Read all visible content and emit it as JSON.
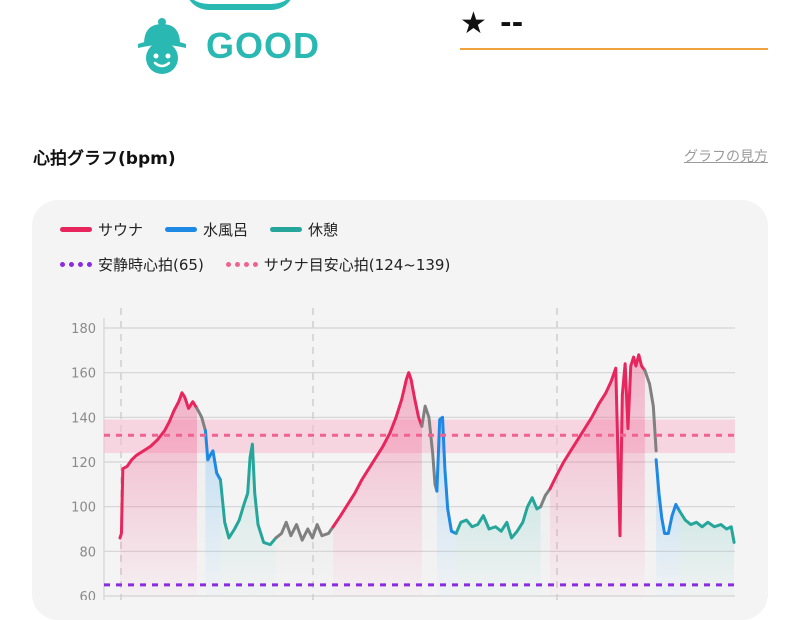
{
  "status": {
    "label": "GOOD",
    "icon": "smiling-hat-face-icon",
    "color": "#2ab9b2"
  },
  "rating": {
    "star": "★",
    "value": "--",
    "underline_color": "#f0a23c"
  },
  "graph_section": {
    "title": "心拍グラフ(bpm)",
    "help_link": "グラフの見方"
  },
  "legend": {
    "sauna": "サウナ",
    "water_bath": "水風呂",
    "rest": "休憩",
    "resting_hr": "安静時心拍(65)",
    "sauna_target": "サウナ目安心拍(124~139)"
  },
  "colors": {
    "sauna": "#e8265e",
    "water_bath": "#1e88e5",
    "rest": "#26a69a",
    "transition": "#808080",
    "resting_hr": "#8a2be2",
    "target": "#f06292"
  },
  "chart_data": {
    "type": "line",
    "title": "",
    "xlabel": "",
    "ylabel": "",
    "ylim": [
      60,
      180
    ],
    "yticks": [
      60,
      80,
      100,
      120,
      140,
      160,
      180
    ],
    "target_band": [
      124,
      139
    ],
    "target_line": 132,
    "resting_line": 65,
    "x_range": [
      0,
      100
    ],
    "segments": [
      {
        "type": "sauna",
        "points": [
          [
            0,
            86
          ],
          [
            0.3,
            88
          ],
          [
            0.6,
            117
          ],
          [
            1.5,
            118
          ],
          [
            2.5,
            121
          ],
          [
            3.5,
            123
          ],
          [
            5,
            125
          ],
          [
            6.5,
            127
          ],
          [
            8,
            130
          ],
          [
            9.5,
            134
          ],
          [
            10.5,
            138
          ],
          [
            11.5,
            143
          ],
          [
            12.5,
            147
          ],
          [
            13.2,
            151
          ],
          [
            13.8,
            149
          ],
          [
            14.6,
            144
          ],
          [
            15.5,
            147
          ],
          [
            16.4,
            144
          ]
        ]
      },
      {
        "type": "transition",
        "points": [
          [
            16.4,
            144
          ],
          [
            17.4,
            140
          ],
          [
            18.2,
            134
          ]
        ]
      },
      {
        "type": "water",
        "points": [
          [
            18.2,
            134
          ],
          [
            18.7,
            121
          ],
          [
            19.2,
            123
          ],
          [
            19.8,
            125
          ],
          [
            20.6,
            115
          ],
          [
            21.4,
            112
          ]
        ]
      },
      {
        "type": "rest",
        "points": [
          [
            21.4,
            112
          ],
          [
            22.3,
            93
          ],
          [
            23.2,
            86
          ],
          [
            24.4,
            90
          ],
          [
            25.4,
            94
          ],
          [
            26.4,
            101
          ],
          [
            27.2,
            106
          ],
          [
            27.7,
            122
          ],
          [
            28.2,
            128
          ],
          [
            28.7,
            106
          ],
          [
            29.4,
            92
          ],
          [
            30.6,
            84
          ],
          [
            32,
            83
          ],
          [
            33.2,
            86
          ]
        ]
      },
      {
        "type": "transition",
        "points": [
          [
            33.2,
            86
          ],
          [
            34.4,
            88
          ],
          [
            35.4,
            93
          ],
          [
            36.4,
            87
          ],
          [
            37.6,
            92
          ],
          [
            38.8,
            85
          ],
          [
            40,
            90
          ],
          [
            41,
            86
          ],
          [
            42,
            92
          ],
          [
            43,
            87
          ],
          [
            44.4,
            88
          ],
          [
            45.4,
            91
          ]
        ]
      },
      {
        "type": "sauna",
        "points": [
          [
            45.4,
            91
          ],
          [
            47,
            96
          ],
          [
            48.5,
            101
          ],
          [
            50,
            106
          ],
          [
            51.5,
            112
          ],
          [
            53,
            117
          ],
          [
            54.5,
            122
          ],
          [
            56,
            127
          ],
          [
            57.5,
            133
          ],
          [
            58.8,
            140
          ],
          [
            60,
            148
          ],
          [
            61,
            157
          ],
          [
            61.5,
            160
          ],
          [
            62,
            157
          ],
          [
            62.8,
            148
          ],
          [
            63.6,
            140
          ],
          [
            64.3,
            136
          ]
        ]
      },
      {
        "type": "transition",
        "points": [
          [
            64.3,
            136
          ],
          [
            65,
            145
          ],
          [
            65.8,
            140
          ],
          [
            66.6,
            124
          ],
          [
            67.1,
            110
          ],
          [
            67.5,
            107
          ]
        ]
      },
      {
        "type": "water",
        "points": [
          [
            67.5,
            107
          ],
          [
            68.1,
            139
          ],
          [
            68.7,
            140
          ],
          [
            69.2,
            117
          ],
          [
            69.8,
            99
          ],
          [
            70.6,
            89
          ],
          [
            71.6,
            88
          ]
        ]
      },
      {
        "type": "rest",
        "points": [
          [
            71.6,
            88
          ],
          [
            72.6,
            93
          ],
          [
            73.8,
            94
          ],
          [
            75,
            91
          ],
          [
            76.2,
            92
          ],
          [
            77.4,
            96
          ],
          [
            78.6,
            90
          ],
          [
            80,
            91
          ],
          [
            81.2,
            89
          ],
          [
            82.4,
            93
          ],
          [
            83.4,
            86
          ],
          [
            84.6,
            89
          ],
          [
            85.8,
            93
          ],
          [
            86.8,
            100
          ],
          [
            87.8,
            104
          ],
          [
            88.8,
            99
          ],
          [
            89.6,
            100
          ]
        ]
      },
      {
        "type": "transition",
        "points": [
          [
            89.6,
            100
          ],
          [
            90.6,
            105
          ],
          [
            91.6,
            108
          ]
        ]
      },
      {
        "type": "sauna",
        "points": [
          [
            91.6,
            108
          ],
          [
            93,
            114
          ],
          [
            94.5,
            120
          ],
          [
            96,
            125
          ],
          [
            97.5,
            130
          ],
          [
            99,
            135
          ],
          [
            100.5,
            140
          ],
          [
            102,
            146
          ],
          [
            103.5,
            151
          ],
          [
            104.6,
            156
          ],
          [
            105.6,
            162
          ],
          [
            106.1,
            121
          ],
          [
            106.5,
            87
          ],
          [
            107,
            150
          ],
          [
            107.6,
            164
          ],
          [
            108.2,
            135
          ],
          [
            108.8,
            163
          ],
          [
            109.4,
            167
          ],
          [
            109.9,
            163
          ],
          [
            110.5,
            168
          ],
          [
            111.1,
            163
          ],
          [
            111.8,
            161
          ]
        ]
      },
      {
        "type": "transition",
        "points": [
          [
            111.8,
            161
          ],
          [
            112.8,
            155
          ],
          [
            113.6,
            145
          ],
          [
            114.2,
            125
          ]
        ]
      },
      {
        "type": "water",
        "points": [
          [
            114.2,
            121
          ],
          [
            114.8,
            106
          ],
          [
            115.4,
            95
          ],
          [
            116,
            88
          ],
          [
            116.8,
            88
          ],
          [
            117.6,
            96
          ],
          [
            118.4,
            101
          ],
          [
            119.2,
            98
          ]
        ]
      },
      {
        "type": "rest",
        "points": [
          [
            119.2,
            98
          ],
          [
            120.4,
            94
          ],
          [
            121.6,
            92
          ],
          [
            122.8,
            93
          ],
          [
            124,
            91
          ],
          [
            125.2,
            93
          ],
          [
            126.6,
            91
          ],
          [
            128,
            92
          ],
          [
            129.2,
            90
          ],
          [
            130.2,
            91
          ],
          [
            130.8,
            84
          ]
        ]
      }
    ],
    "x_max": 131
  }
}
